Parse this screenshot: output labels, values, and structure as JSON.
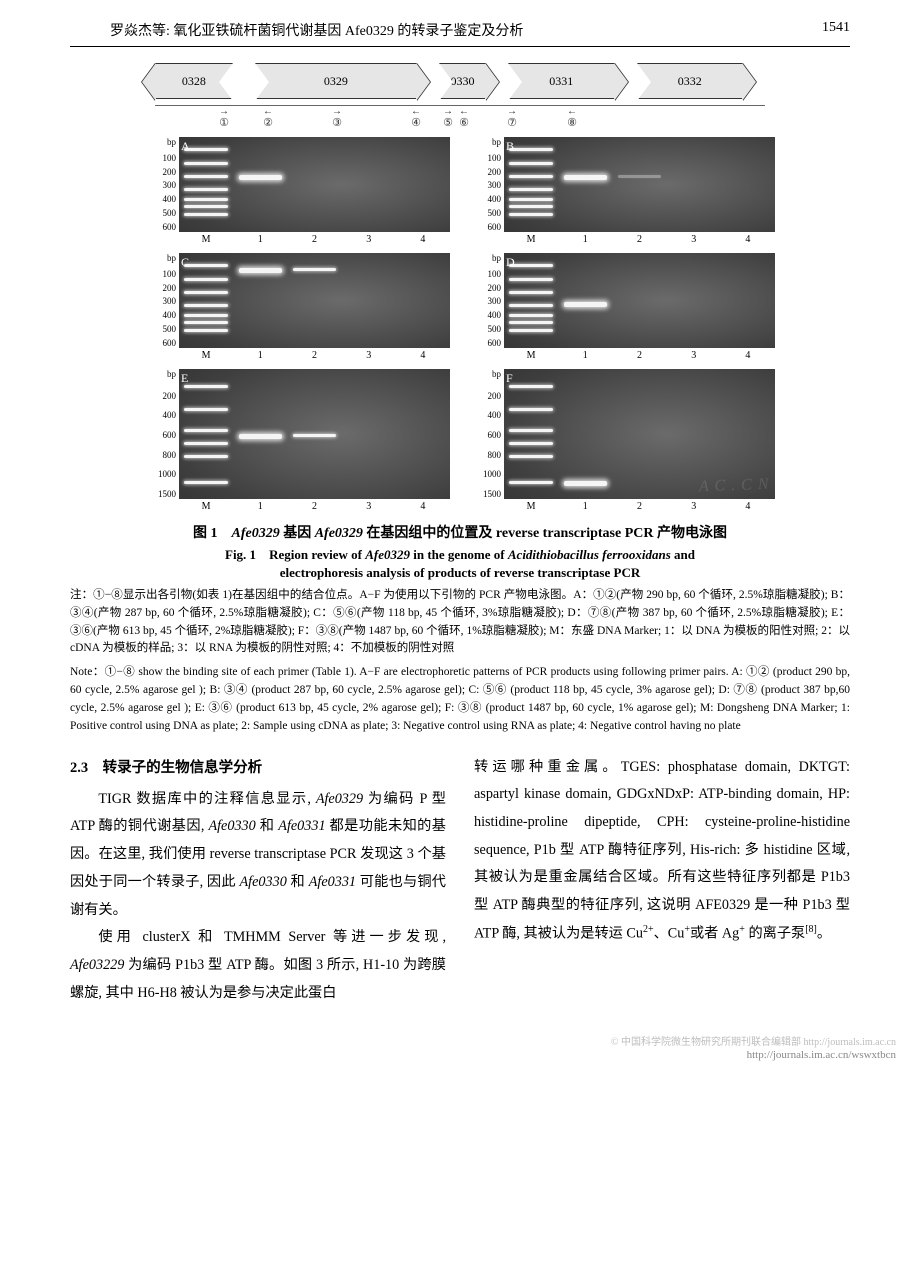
{
  "header": {
    "left": "罗焱杰等: 氧化亚铁硫杆菌铜代谢基因 Afe0329 的转录子鉴定及分析",
    "page_number": "1541"
  },
  "gene_diagram": {
    "genes": [
      {
        "label": "0328",
        "dir": "left",
        "width": 86
      },
      {
        "label": "0329",
        "dir": "right",
        "width": 180
      },
      {
        "label": "0330",
        "dir": "right",
        "width": 52
      },
      {
        "label": "0331",
        "dir": "right",
        "width": 118
      },
      {
        "label": "0332",
        "dir": "right",
        "width": 118
      }
    ],
    "primer_marks": [
      {
        "n": "①",
        "dir": "→",
        "off": 58
      },
      {
        "n": "②",
        "dir": "←",
        "off": 30
      },
      {
        "n": "③",
        "dir": "→",
        "off": 108
      },
      {
        "n": "④",
        "dir": "←",
        "off": 50
      },
      {
        "n": "⑤",
        "dir": "→",
        "off": 14
      },
      {
        "n": "⑥",
        "dir": "←",
        "off": 18
      },
      {
        "n": "⑦",
        "dir": "→",
        "off": 78
      },
      {
        "n": "⑧",
        "dir": "←",
        "off": 42
      }
    ]
  },
  "gel_panels": {
    "lane_labels": [
      "M",
      "1",
      "2",
      "3",
      "4"
    ],
    "top_unit": "bp",
    "panels": [
      {
        "letter": "A",
        "height": "norm",
        "yticks": [
          "100",
          "200",
          "300",
          "400",
          "500",
          "600"
        ],
        "bands": {
          "0": [
            12,
            26,
            40,
            54,
            64,
            72,
            80
          ],
          "1": [
            {
              "p": 40,
              "style": "thick"
            }
          ]
        }
      },
      {
        "letter": "B",
        "height": "norm",
        "yticks": [
          "100",
          "200",
          "300",
          "400",
          "500",
          "600"
        ],
        "bands": {
          "0": [
            12,
            26,
            40,
            54,
            64,
            72,
            80
          ],
          "1": [
            {
              "p": 40,
              "style": "thick"
            }
          ],
          "2": [
            {
              "p": 40,
              "style": "faint"
            }
          ]
        }
      },
      {
        "letter": "C",
        "height": "norm",
        "yticks": [
          "100",
          "200",
          "300",
          "400",
          "500",
          "600"
        ],
        "bands": {
          "0": [
            12,
            26,
            40,
            54,
            64,
            72,
            80
          ],
          "1": [
            {
              "p": 16,
              "style": "thick"
            }
          ],
          "2": [
            {
              "p": 16,
              "style": ""
            }
          ]
        }
      },
      {
        "letter": "D",
        "height": "norm",
        "yticks": [
          "100",
          "200",
          "300",
          "400",
          "500",
          "600"
        ],
        "bands": {
          "0": [
            12,
            26,
            40,
            54,
            64,
            72,
            80
          ],
          "1": [
            {
              "p": 52,
              "style": "thick"
            }
          ]
        }
      },
      {
        "letter": "E",
        "height": "big",
        "yticks": [
          "200",
          "400",
          "600",
          "800",
          "1000",
          "1500"
        ],
        "bands": {
          "0": [
            12,
            30,
            46,
            56,
            66,
            86
          ],
          "1": [
            {
              "p": 50,
              "style": "thick"
            }
          ],
          "2": [
            {
              "p": 50,
              "style": ""
            }
          ]
        }
      },
      {
        "letter": "F",
        "height": "big",
        "yticks": [
          "200",
          "400",
          "600",
          "800",
          "1000",
          "1500"
        ],
        "bands": {
          "0": [
            12,
            30,
            46,
            56,
            66,
            86
          ],
          "1": [
            {
              "p": 86,
              "style": "thick"
            }
          ]
        },
        "watermark": "A C . C N"
      }
    ]
  },
  "fig_caption": {
    "zh_label": "图 1",
    "zh_text": "基因 Afe0329 在基因组中的位置及 reverse transcriptase PCR 产物电泳图",
    "en_label": "Fig. 1",
    "en_text_a": "Region review of ",
    "en_text_b": " in the genome of ",
    "en_text_c": " and",
    "en_italic_1": "Afe0329",
    "en_italic_2": "Acidithiobacillus ferrooxidans",
    "en_line2": "electrophoresis analysis of products of reverse transcriptase PCR",
    "note_zh": "注：①−⑧显示出各引物(如表 1)在基因组中的结合位点。A−F 为使用以下引物的 PCR 产物电泳图。A：①②(产物 290 bp, 60 个循环, 2.5%琼脂糖凝胶); B：③④(产物 287 bp, 60 个循环, 2.5%琼脂糖凝胶); C：⑤⑥(产物 118 bp, 45 个循环, 3%琼脂糖凝胶); D：⑦⑧(产物 387 bp, 60 个循环, 2.5%琼脂糖凝胶); E：③⑥(产物 613 bp, 45 个循环, 2%琼脂糖凝胶); F：③⑧(产物 1487 bp, 60 个循环, 1%琼脂糖凝胶); M：东盛 DNA Marker; 1：以 DNA 为模板的阳性对照; 2：以 cDNA 为模板的样品; 3：以 RNA 为模板的阴性对照; 4：不加模板的阴性对照",
    "note_en": "Note：①−⑧ show the binding site of each primer (Table 1). A−F are electrophoretic patterns of PCR products using following primer pairs. A: ①② (product 290 bp, 60 cycle, 2.5% agarose gel ); B: ③④ (product 287 bp, 60 cycle, 2.5% agarose gel); C: ⑤⑥ (product 118 bp, 45 cycle, 3% agarose gel); D: ⑦⑧ (product 387 bp,60 cycle, 2.5% agarose gel ); E: ③⑥ (product 613 bp, 45 cycle, 2% agarose gel); F: ③⑧ (product 1487 bp, 60 cycle, 1% agarose gel); M: Dongsheng DNA Marker; 1: Positive control using DNA as plate; 2: Sample using cDNA as plate; 3: Negative control using RNA as plate; 4: Negative control having no plate"
  },
  "body": {
    "section_no": "2.3",
    "section_title": "转录子的生物信息学分析",
    "left_p1": "TIGR 数据库中的注释信息显示, Afe0329 为编码 P 型 ATP 酶的铜代谢基因, Afe0330 和 Afe0331 都是功能未知的基因。在这里, 我们使用 reverse transcriptase PCR 发现这 3 个基因处于同一个转录子, 因此 Afe0330 和 Afe0331 可能也与铜代谢有关。",
    "left_p2": "使用 clusterX 和 TMHMM Server 等进一步发现, Afe03229 为编码 P1b3 型 ATP 酶。如图 3 所示, H1-10 为跨膜螺旋, 其中 H6-H8 被认为是参与决定此蛋白",
    "right_p1": "转运哪种重金属。TGES: phosphatase domain, DKTGT: aspartyl kinase domain, GDGxNDxP: ATP-binding domain, HP: histidine-proline dipeptide, CPH: cysteine-proline-histidine sequence, P1b 型 ATP 酶特征序列, His-rich: 多 histidine 区域, 其被认为是重金属结合区域。所有这些特征序列都是 P1b3 型 ATP 酶典型的特征序列, 这说明 AFE0329 是一种 P1b3 型 ATP 酶, 其被认为是转运 Cu2+、Cu+或者 Ag+ 的离子泵[8]。"
  },
  "footer": {
    "line1": "© 中国科学院微生物研究所期刊联合编辑部  http://journals.im.ac.cn",
    "line2": "http://journals.im.ac.cn/wswxtbcn"
  }
}
